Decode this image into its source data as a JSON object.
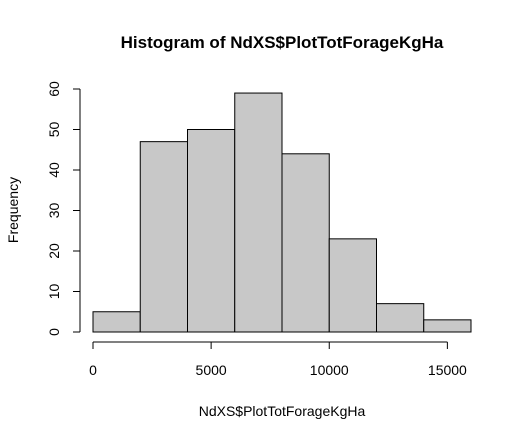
{
  "chart_data": {
    "type": "bar",
    "title": "Histogram of NdXS$PlotTotForageKgHa",
    "xlabel": "NdXS$PlotTotForageKgHa",
    "ylabel": "Frequency",
    "bins": [
      {
        "start": 0,
        "end": 2000,
        "count": 5
      },
      {
        "start": 2000,
        "end": 4000,
        "count": 47
      },
      {
        "start": 4000,
        "end": 6000,
        "count": 50
      },
      {
        "start": 6000,
        "end": 8000,
        "count": 59
      },
      {
        "start": 8000,
        "end": 10000,
        "count": 44
      },
      {
        "start": 10000,
        "end": 12000,
        "count": 23
      },
      {
        "start": 12000,
        "end": 14000,
        "count": 7
      },
      {
        "start": 14000,
        "end": 16000,
        "count": 3
      }
    ],
    "xlim": [
      0,
      16000
    ],
    "ylim": [
      0,
      60
    ],
    "x_ticks": [
      0,
      5000,
      10000,
      15000
    ],
    "y_ticks": [
      0,
      10,
      20,
      30,
      40,
      50,
      60
    ],
    "grid": false,
    "colors": {
      "bar_fill": "#c8c8c8",
      "bar_stroke": "#000000"
    }
  }
}
